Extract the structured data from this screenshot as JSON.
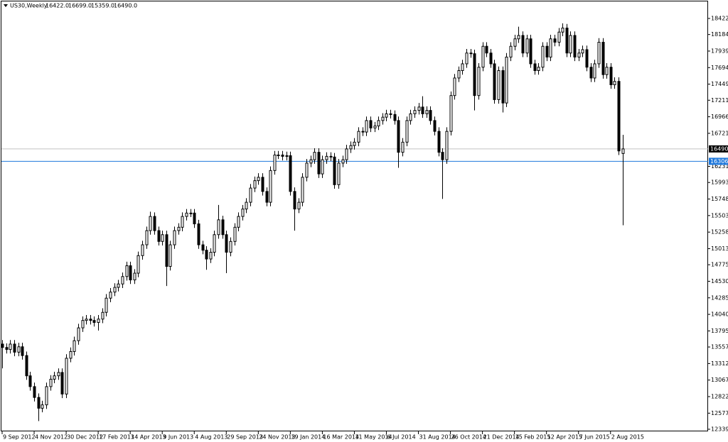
{
  "chart_data": {
    "type": "candlestick",
    "symbol": "US30,Weekly",
    "header_values": [
      "16422.0",
      "16699.0",
      "15359.0",
      "16490.0"
    ],
    "categories": [
      "9 Sep 2012",
      null,
      null,
      null,
      null,
      null,
      null,
      null,
      "4 Nov 2012",
      null,
      null,
      null,
      null,
      null,
      null,
      null,
      "30 Dec 2012",
      null,
      null,
      null,
      null,
      null,
      null,
      null,
      "17 Feb 2013",
      null,
      null,
      null,
      null,
      null,
      null,
      null,
      "14 Apr 2013",
      null,
      null,
      null,
      null,
      null,
      null,
      null,
      "9 Jun 2013",
      null,
      null,
      null,
      null,
      null,
      null,
      null,
      "4 Aug 2013",
      null,
      null,
      null,
      null,
      null,
      null,
      null,
      "29 Sep 2013",
      null,
      null,
      null,
      null,
      null,
      null,
      null,
      "24 Nov 2013",
      null,
      null,
      null,
      null,
      null,
      null,
      null,
      "19 Jan 2014",
      null,
      null,
      null,
      null,
      null,
      null,
      null,
      "16 Mar 2014",
      null,
      null,
      null,
      null,
      null,
      null,
      null,
      "11 May 2014",
      null,
      null,
      null,
      null,
      null,
      null,
      null,
      "6 Jul 2014",
      null,
      null,
      null,
      null,
      null,
      null,
      null,
      "31 Aug 2014",
      null,
      null,
      null,
      null,
      null,
      null,
      null,
      "26 Oct 2014",
      null,
      null,
      null,
      null,
      null,
      null,
      null,
      "21 Dec 2014",
      null,
      null,
      null,
      null,
      null,
      null,
      null,
      "15 Feb 2015",
      null,
      null,
      null,
      null,
      null,
      null,
      null,
      "12 Apr 2015",
      null,
      null,
      null,
      null,
      null,
      null,
      null,
      "7 Jun 2015",
      null,
      null,
      null,
      null,
      null,
      null,
      null,
      "2 Aug 2015",
      null,
      null,
      null
    ],
    "open": [
      13600,
      13550,
      13520,
      13600,
      13480,
      13560,
      13430,
      13130,
      12970,
      12810,
      12650,
      12700,
      12970,
      13080,
      13130,
      13180,
      12860,
      13390,
      13490,
      13650,
      13840,
      13950,
      13970,
      13950,
      13920,
      13970,
      14070,
      14280,
      14370,
      14440,
      14490,
      14600,
      14760,
      14550,
      14650,
      14910,
      15070,
      15280,
      15490,
      15280,
      15120,
      15220,
      14750,
      15070,
      15280,
      15330,
      15490,
      15540,
      15540,
      15380,
      15070,
      14990,
      14860,
      14960,
      15220,
      15440,
      15220,
      14960,
      15120,
      15330,
      15490,
      15600,
      15700,
      15910,
      16020,
      16070,
      15860,
      15700,
      16170,
      16400,
      16400,
      16380,
      16390,
      15860,
      15600,
      15700,
      16070,
      16280,
      16330,
      16440,
      16120,
      16330,
      16380,
      16370,
      15960,
      16280,
      16330,
      16490,
      16540,
      16590,
      16750,
      16740,
      16910,
      16800,
      16830,
      16910,
      16960,
      17010,
      17000,
      16910,
      16440,
      16590,
      16910,
      17010,
      17060,
      17110,
      17010,
      17060,
      16910,
      16750,
      16440,
      16330,
      16750,
      17280,
      17540,
      17650,
      17750,
      17910,
      17900,
      17280,
      17700,
      18010,
      17910,
      17750,
      17220,
      17650,
      17170,
      17850,
      18010,
      18120,
      18170,
      17910,
      18120,
      17750,
      17650,
      17700,
      18010,
      17850,
      18120,
      18070,
      18220,
      18280,
      17910,
      18170,
      17850,
      17910,
      17960,
      17700,
      17540,
      17750,
      18070,
      17590,
      17700,
      17440,
      17490,
      16422
    ],
    "high": [
      13660,
      13610,
      13660,
      13660,
      13620,
      13620,
      13490,
      13190,
      13030,
      12870,
      12760,
      13030,
      13140,
      13190,
      13240,
      13240,
      13450,
      13550,
      13710,
      13900,
      14010,
      14030,
      14030,
      14010,
      14030,
      14130,
      14340,
      14430,
      14500,
      14550,
      14660,
      14820,
      14820,
      14710,
      14970,
      15130,
      15340,
      15560,
      15550,
      15340,
      15280,
      15280,
      15130,
      15340,
      15390,
      15550,
      15600,
      15600,
      15600,
      15440,
      15130,
      15050,
      15020,
      15280,
      15660,
      15500,
      15280,
      15180,
      15390,
      15550,
      15660,
      15760,
      15970,
      16080,
      16130,
      16130,
      15920,
      16230,
      16460,
      16460,
      16460,
      16450,
      16450,
      15920,
      15760,
      16130,
      16340,
      16390,
      16500,
      16500,
      16390,
      16440,
      16440,
      16430,
      16340,
      16390,
      16550,
      16600,
      16650,
      16810,
      16810,
      16970,
      16970,
      16890,
      16970,
      17020,
      17070,
      17070,
      17060,
      16970,
      16650,
      16970,
      17070,
      17120,
      17170,
      17270,
      17120,
      17120,
      16970,
      16810,
      16500,
      16810,
      17340,
      17600,
      17710,
      17810,
      17970,
      17970,
      17960,
      17760,
      18070,
      18070,
      17970,
      17810,
      17710,
      17710,
      17910,
      18070,
      18180,
      18300,
      18230,
      18180,
      18180,
      17810,
      17760,
      18070,
      18070,
      18180,
      18180,
      18280,
      18350,
      18340,
      18230,
      18230,
      17970,
      18020,
      18020,
      17760,
      17810,
      18130,
      18130,
      17760,
      17760,
      17550,
      17550,
      16699
    ],
    "low": [
      13240,
      13460,
      13460,
      13420,
      13420,
      13370,
      13070,
      12910,
      12750,
      12460,
      12590,
      12640,
      12910,
      13020,
      13070,
      12800,
      12800,
      13330,
      13430,
      13590,
      13780,
      13890,
      13890,
      13860,
      13800,
      13910,
      14010,
      14220,
      14310,
      14380,
      14430,
      14540,
      14490,
      14490,
      14590,
      14850,
      15010,
      15220,
      15220,
      15060,
      15060,
      14460,
      14690,
      15010,
      15220,
      15270,
      15430,
      15480,
      15320,
      15010,
      14930,
      14700,
      14800,
      14900,
      15160,
      15160,
      14650,
      14900,
      15060,
      15270,
      15430,
      15540,
      15640,
      15850,
      15960,
      15800,
      15640,
      15640,
      16110,
      16340,
      16320,
      16320,
      15800,
      15280,
      15540,
      15640,
      16010,
      16220,
      16270,
      16060,
      16060,
      16270,
      16310,
      15900,
      15900,
      16220,
      16270,
      16430,
      16480,
      16530,
      16680,
      16680,
      16740,
      16740,
      16770,
      16850,
      16900,
      16940,
      16850,
      16210,
      16380,
      16530,
      16850,
      16950,
      17000,
      16950,
      16950,
      16850,
      16690,
      16380,
      15750,
      16270,
      16690,
      17220,
      17480,
      17590,
      17690,
      17840,
      17060,
      17220,
      17640,
      17850,
      17690,
      17160,
      17160,
      17030,
      17110,
      17790,
      17950,
      18060,
      17850,
      17850,
      17690,
      17590,
      17590,
      17640,
      17790,
      17790,
      18010,
      18010,
      18160,
      17850,
      17850,
      17790,
      17790,
      17850,
      17640,
      17480,
      17480,
      17690,
      17530,
      17530,
      17380,
      17380,
      16400,
      15359
    ],
    "close": [
      13550,
      13520,
      13600,
      13480,
      13560,
      13430,
      13130,
      12970,
      12810,
      12650,
      12700,
      12970,
      13080,
      13130,
      13180,
      12860,
      13390,
      13490,
      13650,
      13840,
      13950,
      13970,
      13950,
      13920,
      13970,
      14070,
      14280,
      14370,
      14440,
      14490,
      14600,
      14760,
      14550,
      14650,
      14910,
      15070,
      15280,
      15490,
      15280,
      15120,
      15220,
      14750,
      15070,
      15280,
      15330,
      15490,
      15540,
      15540,
      15380,
      15070,
      14990,
      14860,
      14960,
      15220,
      15440,
      15220,
      14960,
      15120,
      15330,
      15490,
      15600,
      15700,
      15910,
      16020,
      16070,
      15860,
      15700,
      16170,
      16400,
      16400,
      16380,
      16390,
      15860,
      15600,
      15700,
      16070,
      16280,
      16330,
      16440,
      16120,
      16330,
      16380,
      16370,
      15960,
      16280,
      16330,
      16490,
      16540,
      16590,
      16750,
      16740,
      16910,
      16800,
      16830,
      16910,
      16960,
      17010,
      17000,
      16910,
      16440,
      16590,
      16910,
      17010,
      17060,
      17110,
      17010,
      17060,
      16910,
      16750,
      16440,
      16330,
      16750,
      17280,
      17540,
      17650,
      17750,
      17910,
      17900,
      17280,
      17700,
      18010,
      17910,
      17750,
      17220,
      17650,
      17170,
      17850,
      18010,
      18120,
      18170,
      17910,
      18120,
      17750,
      17650,
      17700,
      18010,
      17850,
      18120,
      18070,
      18220,
      18280,
      17910,
      18170,
      17850,
      17910,
      17960,
      17700,
      17540,
      17750,
      18070,
      17590,
      17700,
      17440,
      17490,
      16460,
      16490
    ],
    "up_color": "#ffffff",
    "down_color": "#000000",
    "ylim": [
      12339,
      18422
    ],
    "yticks": [
      {
        "value": 18422,
        "label": "18422.0"
      },
      {
        "value": 18184,
        "label": "18184.0"
      },
      {
        "value": 17939,
        "label": "17939.0"
      },
      {
        "value": 17694,
        "label": "17694.0"
      },
      {
        "value": 17449,
        "label": "17449.0"
      },
      {
        "value": 17211,
        "label": "17211.0"
      },
      {
        "value": 16966,
        "label": "16966.0"
      },
      {
        "value": 16721,
        "label": "16721.0"
      },
      {
        "value": 16231,
        "label": "16231.0"
      },
      {
        "value": 15993,
        "label": "15993.0"
      },
      {
        "value": 15748,
        "label": "15748.0"
      },
      {
        "value": 15503,
        "label": "15503.0"
      },
      {
        "value": 15258,
        "label": "15258.0"
      },
      {
        "value": 15013,
        "label": "15013.0"
      },
      {
        "value": 14775,
        "label": "14775.0"
      },
      {
        "value": 14530,
        "label": "14530.0"
      },
      {
        "value": 14285,
        "label": "14285.0"
      },
      {
        "value": 14040,
        "label": "14040.0"
      },
      {
        "value": 13795,
        "label": "13795.0"
      },
      {
        "value": 13557,
        "label": "13557.0"
      },
      {
        "value": 13312,
        "label": "13312.0"
      },
      {
        "value": 13067,
        "label": "13067.0"
      },
      {
        "value": 12822,
        "label": "12822.0"
      },
      {
        "value": 12577,
        "label": "12577.0"
      },
      {
        "value": 12339,
        "label": "12339.0"
      }
    ],
    "price_lines": [
      {
        "value": 16490,
        "label": "16490.0",
        "color": "#c0c0c0",
        "label_color": "#000000"
      },
      {
        "value": 16306.3,
        "label": "16306.3",
        "color": "#1e78dc",
        "label_color": "#1e78dc"
      }
    ]
  }
}
